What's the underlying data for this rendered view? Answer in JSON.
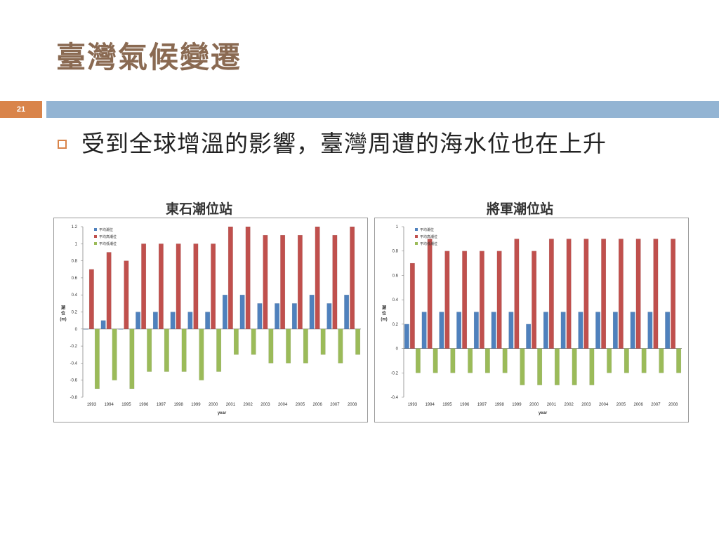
{
  "slide": {
    "title": "臺灣氣候變遷",
    "number": "21",
    "bullet": "受到全球增溫的影響，臺灣周遭的海水位也在上升"
  },
  "colors": {
    "title": "#8a6a52",
    "accent_bar": "#93b4d3",
    "number_box": "#d9844a",
    "bullet": "#d9844a",
    "series": [
      "#4f81bd",
      "#c0504d",
      "#9bbb59"
    ]
  },
  "chart_data": [
    {
      "type": "bar",
      "title": "東石潮位站",
      "xlabel": "year",
      "ylabel": "潮位(m)",
      "ylim": [
        -0.8,
        1.2
      ],
      "yticks": [
        -0.8,
        -0.6,
        -0.4,
        -0.2,
        0,
        0.2,
        0.4,
        0.6,
        0.8,
        1,
        1.2
      ],
      "grid": false,
      "legend": "top-left",
      "categories": [
        "1993",
        "1994",
        "1995",
        "1996",
        "1997",
        "1998",
        "1999",
        "2000",
        "2001",
        "2002",
        "2003",
        "2004",
        "2005",
        "2006",
        "2007",
        "2008"
      ],
      "series": [
        {
          "name": "平均潮位",
          "values": [
            0,
            0.1,
            0,
            0.2,
            0.2,
            0.2,
            0.2,
            0.2,
            0.4,
            0.4,
            0.3,
            0.3,
            0.3,
            0.4,
            0.3,
            0.4
          ]
        },
        {
          "name": "平均高潮位",
          "values": [
            0.7,
            0.9,
            0.8,
            1.0,
            1.0,
            1.0,
            1.0,
            1.0,
            1.2,
            1.2,
            1.1,
            1.1,
            1.1,
            1.2,
            1.1,
            1.2
          ]
        },
        {
          "name": "平均低潮位",
          "values": [
            -0.7,
            -0.6,
            -0.7,
            -0.5,
            -0.5,
            -0.5,
            -0.6,
            -0.5,
            -0.3,
            -0.3,
            -0.4,
            -0.4,
            -0.4,
            -0.3,
            -0.4,
            -0.3
          ]
        }
      ]
    },
    {
      "type": "bar",
      "title": "將軍潮位站",
      "xlabel": "year",
      "ylabel": "潮位(m)",
      "ylim": [
        -0.4,
        1
      ],
      "yticks": [
        -0.4,
        -0.2,
        0,
        0.2,
        0.4,
        0.6,
        0.8,
        1
      ],
      "grid": false,
      "legend": "top-left",
      "categories": [
        "1993",
        "1994",
        "1995",
        "1996",
        "1997",
        "1998",
        "1999",
        "2000",
        "2001",
        "2002",
        "2003",
        "2004",
        "2005",
        "2006",
        "2007",
        "2008"
      ],
      "series": [
        {
          "name": "平均潮位",
          "values": [
            0.2,
            0.3,
            0.3,
            0.3,
            0.3,
            0.3,
            0.3,
            0.2,
            0.3,
            0.3,
            0.3,
            0.3,
            0.3,
            0.3,
            0.3,
            0.3
          ]
        },
        {
          "name": "平均高潮位",
          "values": [
            0.7,
            0.9,
            0.8,
            0.8,
            0.8,
            0.8,
            0.9,
            0.8,
            0.9,
            0.9,
            0.9,
            0.9,
            0.9,
            0.9,
            0.9,
            0.9
          ]
        },
        {
          "name": "平均低潮位",
          "values": [
            -0.2,
            -0.2,
            -0.2,
            -0.2,
            -0.2,
            -0.2,
            -0.3,
            -0.3,
            -0.3,
            -0.3,
            -0.3,
            -0.2,
            -0.2,
            -0.2,
            -0.2,
            -0.2
          ]
        }
      ]
    }
  ]
}
